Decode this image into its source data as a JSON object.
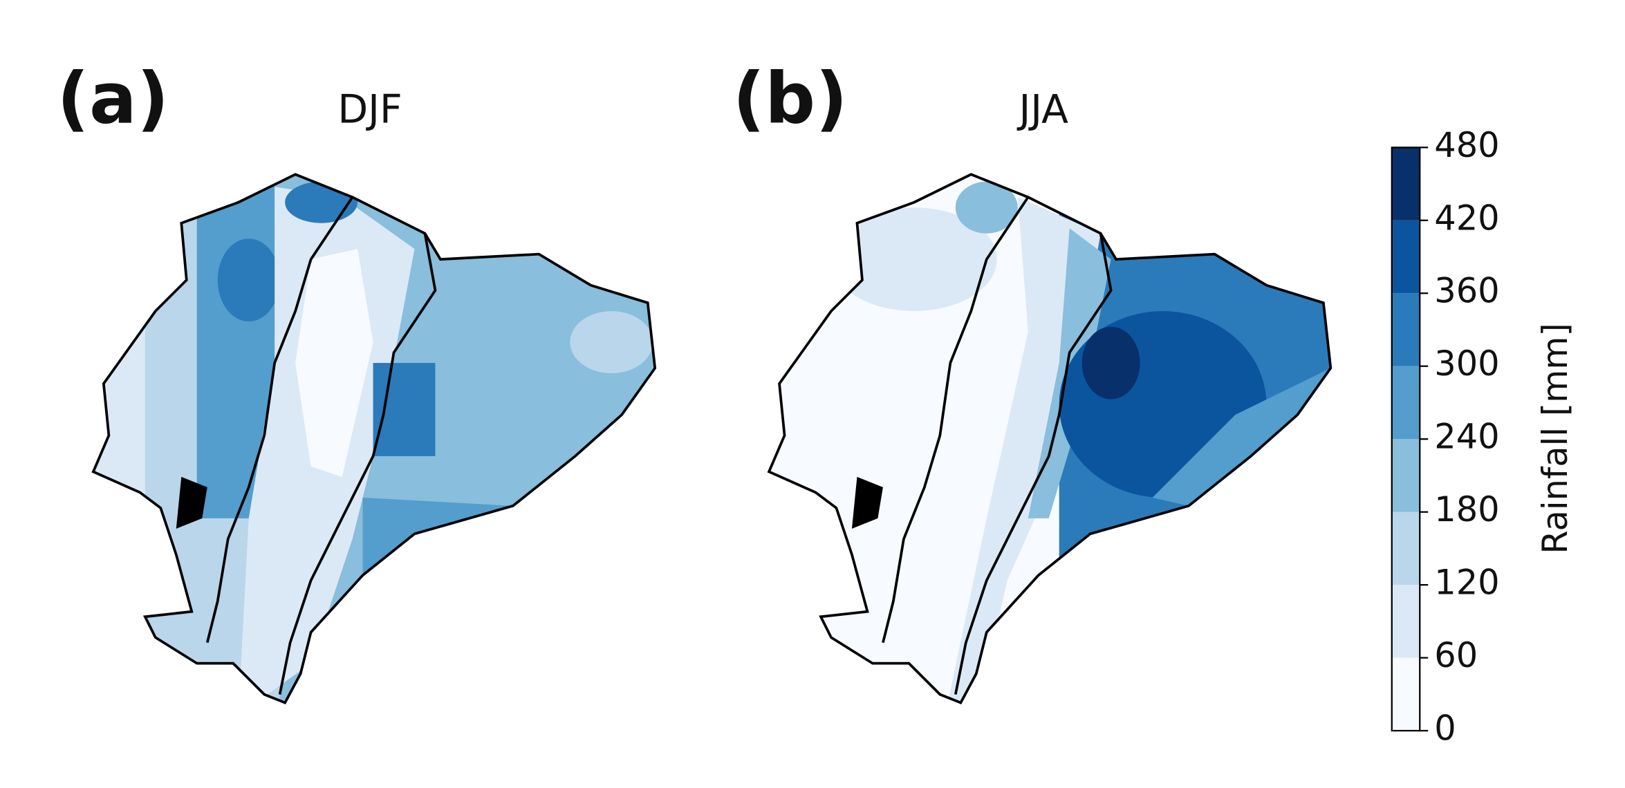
{
  "panels": [
    {
      "label": "(a)",
      "title": "DJF"
    },
    {
      "label": "(b)",
      "title": "JJA"
    }
  ],
  "colorbar": {
    "label": "Rainfall [mm]",
    "lim": [
      0,
      480
    ],
    "ticks": [
      0,
      60,
      120,
      180,
      240,
      300,
      360,
      420,
      480
    ],
    "colors": [
      "#f7fbff",
      "#dbe9f6",
      "#bad6eb",
      "#89bedc",
      "#539ecd",
      "#2b7bba",
      "#0b559f",
      "#08306b"
    ]
  }
}
